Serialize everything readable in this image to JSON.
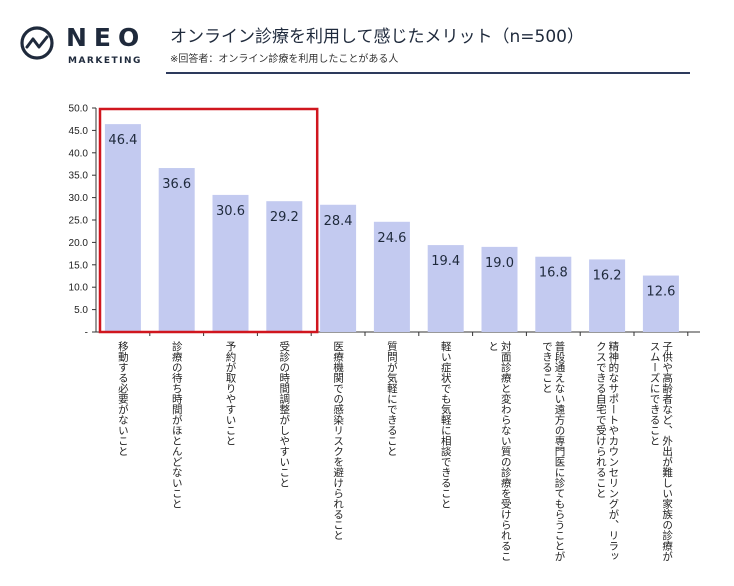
{
  "header": {
    "logo_word": "NEO",
    "logo_sub": "MARKETING",
    "title": "オンライン診療を利用して感じたメリット（n=500）",
    "subtitle": "※回答者：オンライン診療を利用したことがある人"
  },
  "colors": {
    "bar": "#c3caf0",
    "highlight": "#d0161e",
    "rule": "#2d3a5c",
    "axis": "#333333"
  },
  "chart_data": {
    "type": "bar",
    "title": "オンライン診療を利用して感じたメリット（n=500）",
    "ylim": [
      0,
      50
    ],
    "yticks": [
      "50.0",
      "45.0",
      "40.0",
      "35.0",
      "30.0",
      "25.0",
      "20.0",
      "15.0",
      "10.0",
      "5.0",
      "-"
    ],
    "categories": [
      [
        "移動する必要がないこと"
      ],
      [
        "診療の待ち時間がほとんどないこと"
      ],
      [
        "予約が取りやすいこと"
      ],
      [
        "受診の時間調整がしやすいこと"
      ],
      [
        "医療機関での感染リスクを避けられること"
      ],
      [
        "質問が気軽にできること"
      ],
      [
        "軽い症状でも気軽に相談できること"
      ],
      [
        "対面診療と変わらない質の診療を受けられるこ",
        "と"
      ],
      [
        "普段通えない遠方の専門医に診てもらうことが",
        "できること"
      ],
      [
        "精神的なサポートやカウンセリングが、リラッ",
        "クスできる自宅で受けられること"
      ],
      [
        "子供や高齢者など、外出が難しい家族の診療が",
        "スムーズにできること"
      ]
    ],
    "values": [
      46.4,
      36.6,
      30.6,
      29.2,
      28.4,
      24.6,
      19.4,
      19.0,
      16.8,
      16.2,
      12.6
    ],
    "value_labels": [
      "46.4",
      "36.6",
      "30.6",
      "29.2",
      "28.4",
      "24.6",
      "19.4",
      "19.0",
      "16.8",
      "16.2",
      "12.6"
    ],
    "highlighted_count": 4
  }
}
